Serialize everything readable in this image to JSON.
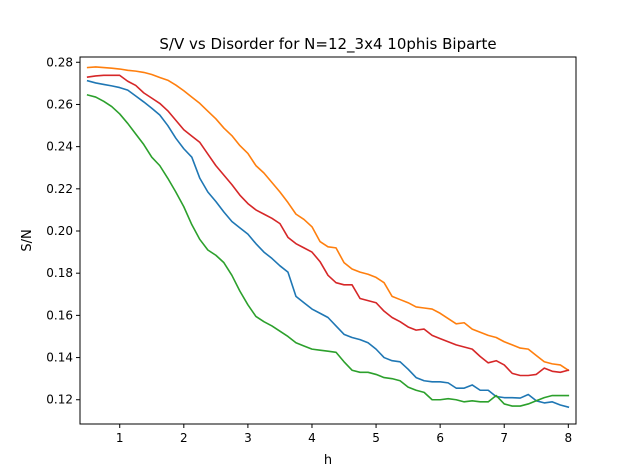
{
  "chart_data": {
    "type": "line",
    "title": "S/V vs Disorder for N=12_3x4 10phis Biparte",
    "xlabel": "h",
    "ylabel": "S/N",
    "xlim": [
      0.38,
      8.12
    ],
    "ylim": [
      0.1085,
      0.2825
    ],
    "xticks": [
      1,
      2,
      3,
      4,
      5,
      6,
      7,
      8
    ],
    "xtick_labels": [
      "1",
      "2",
      "3",
      "4",
      "5",
      "6",
      "7",
      "8"
    ],
    "yticks": [
      0.12,
      0.14,
      0.16,
      0.18,
      0.2,
      0.22,
      0.24,
      0.26,
      0.28
    ],
    "ytick_labels": [
      "0.12",
      "0.14",
      "0.16",
      "0.18",
      "0.20",
      "0.22",
      "0.24",
      "0.26",
      "0.28"
    ],
    "grid": false,
    "legend": "none",
    "x": [
      0.5,
      0.625,
      0.75,
      0.875,
      1.0,
      1.125,
      1.25,
      1.375,
      1.5,
      1.625,
      1.75,
      1.875,
      2.0,
      2.125,
      2.25,
      2.375,
      2.5,
      2.625,
      2.75,
      2.875,
      3.0,
      3.125,
      3.25,
      3.375,
      3.5,
      3.625,
      3.75,
      3.875,
      4.0,
      4.125,
      4.25,
      4.375,
      4.5,
      4.625,
      4.75,
      4.875,
      5.0,
      5.125,
      5.25,
      5.375,
      5.5,
      5.625,
      5.75,
      5.875,
      6.0,
      6.125,
      6.25,
      6.375,
      6.5,
      6.625,
      6.75,
      6.875,
      7.0,
      7.125,
      7.25,
      7.375,
      7.5,
      7.625,
      7.75,
      7.875,
      8.0
    ],
    "series": [
      {
        "color": "#1f77b4",
        "values": [
          0.2712,
          0.2702,
          0.2695,
          0.2688,
          0.268,
          0.2668,
          0.264,
          0.2612,
          0.2582,
          0.255,
          0.25,
          0.244,
          0.239,
          0.235,
          0.225,
          0.2185,
          0.214,
          0.209,
          0.2045,
          0.2015,
          0.1985,
          0.194,
          0.19,
          0.187,
          0.1835,
          0.1805,
          0.169,
          0.166,
          0.163,
          0.161,
          0.159,
          0.155,
          0.151,
          0.1495,
          0.1485,
          0.147,
          0.144,
          0.14,
          0.1385,
          0.138,
          0.1345,
          0.1305,
          0.129,
          0.1285,
          0.1285,
          0.128,
          0.1255,
          0.1255,
          0.127,
          0.1245,
          0.1245,
          0.1215,
          0.121,
          0.121,
          0.1208,
          0.1225,
          0.1195,
          0.1185,
          0.119,
          0.1175,
          0.1165
        ]
      },
      {
        "color": "#ff7f0e",
        "values": [
          0.2775,
          0.2778,
          0.2775,
          0.2772,
          0.2768,
          0.2762,
          0.2758,
          0.2752,
          0.2742,
          0.2728,
          0.2715,
          0.2692,
          0.2665,
          0.2635,
          0.2605,
          0.2568,
          0.2532,
          0.2488,
          0.2452,
          0.2405,
          0.2368,
          0.231,
          0.2275,
          0.223,
          0.2185,
          0.2135,
          0.208,
          0.2055,
          0.202,
          0.195,
          0.1925,
          0.192,
          0.185,
          0.182,
          0.1805,
          0.1795,
          0.178,
          0.1755,
          0.169,
          0.1675,
          0.166,
          0.164,
          0.1635,
          0.163,
          0.161,
          0.1585,
          0.156,
          0.1565,
          0.1535,
          0.152,
          0.1505,
          0.1495,
          0.1475,
          0.146,
          0.1445,
          0.144,
          0.141,
          0.138,
          0.137,
          0.1365,
          0.134
        ]
      },
      {
        "color": "#2ca02c",
        "values": [
          0.2645,
          0.2635,
          0.2615,
          0.259,
          0.2555,
          0.251,
          0.246,
          0.241,
          0.235,
          0.231,
          0.225,
          0.2185,
          0.2115,
          0.203,
          0.196,
          0.191,
          0.1885,
          0.185,
          0.179,
          0.1715,
          0.165,
          0.1595,
          0.157,
          0.155,
          0.1525,
          0.15,
          0.147,
          0.1455,
          0.144,
          0.1435,
          0.143,
          0.1425,
          0.138,
          0.134,
          0.133,
          0.133,
          0.132,
          0.1305,
          0.13,
          0.129,
          0.126,
          0.1245,
          0.1235,
          0.12,
          0.12,
          0.1205,
          0.12,
          0.119,
          0.1195,
          0.119,
          0.119,
          0.122,
          0.118,
          0.117,
          0.117,
          0.118,
          0.1195,
          0.121,
          0.122,
          0.122,
          0.122
        ]
      },
      {
        "color": "#d62728",
        "values": [
          0.273,
          0.2735,
          0.2738,
          0.2738,
          0.2738,
          0.271,
          0.269,
          0.2655,
          0.263,
          0.2605,
          0.257,
          0.2525,
          0.248,
          0.245,
          0.242,
          0.2365,
          0.231,
          0.2265,
          0.222,
          0.217,
          0.213,
          0.21,
          0.208,
          0.206,
          0.2035,
          0.197,
          0.194,
          0.192,
          0.19,
          0.1855,
          0.179,
          0.1755,
          0.1745,
          0.1745,
          0.168,
          0.167,
          0.166,
          0.162,
          0.159,
          0.157,
          0.1545,
          0.153,
          0.1535,
          0.1505,
          0.149,
          0.1475,
          0.146,
          0.145,
          0.144,
          0.1405,
          0.1375,
          0.1385,
          0.1365,
          0.1325,
          0.1315,
          0.1315,
          0.132,
          0.135,
          0.1335,
          0.133,
          0.134
        ]
      }
    ]
  }
}
